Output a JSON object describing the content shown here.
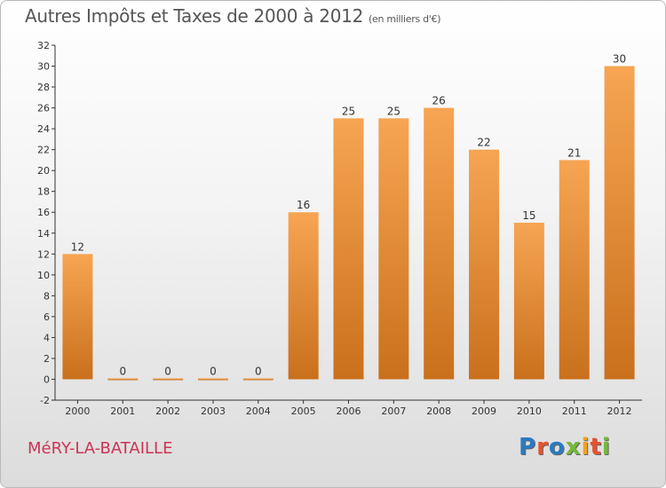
{
  "title": "Autres Impôts et Taxes de 2000 à 2012",
  "title_unit": "(en milliers d'€)",
  "commune": "MéRY-LA-BATAILLE",
  "logo_text": "Proxiti",
  "logo_colors": [
    "#2b7bbf",
    "#e8522c",
    "#2b7bbf",
    "#74b93a",
    "#f2a21c",
    "#e8522c",
    "#74b93a"
  ],
  "colors": {
    "bar_light": "#f7a553",
    "bar_dark": "#c9701c",
    "commune": "#cc3355"
  },
  "chart_data": {
    "type": "bar",
    "title": "Autres Impôts et Taxes de 2000 à 2012",
    "categories": [
      "2000",
      "2001",
      "2002",
      "2003",
      "2004",
      "2005",
      "2006",
      "2007",
      "2008",
      "2009",
      "2010",
      "2011",
      "2012"
    ],
    "values": [
      12,
      0,
      0,
      0,
      0,
      16,
      25,
      25,
      26,
      22,
      15,
      21,
      30
    ],
    "ylim": [
      -2,
      32
    ],
    "yticks": [
      -2,
      0,
      2,
      4,
      6,
      8,
      10,
      12,
      14,
      16,
      18,
      20,
      22,
      24,
      26,
      28,
      30,
      32
    ],
    "grid": false,
    "legend": "none"
  }
}
